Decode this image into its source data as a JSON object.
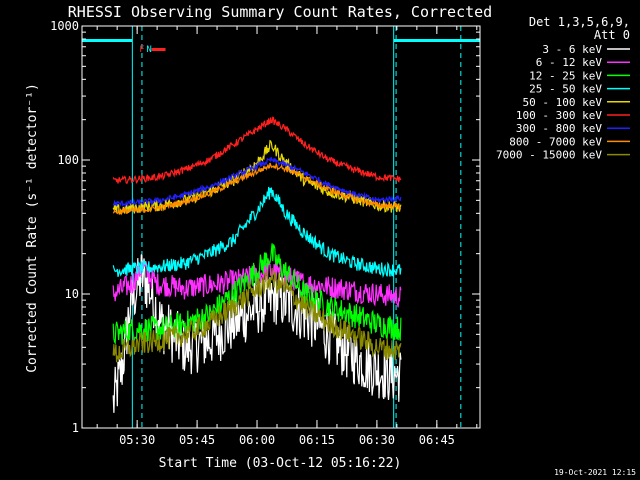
{
  "chart_data": {
    "type": "line",
    "title": "RHESSI Observing Summary Count Rates, Corrected",
    "ylabel": "Corrected Count Rate (s⁻¹ detector⁻¹)",
    "xlabel": "Start Time (03-Oct-12 05:16:22)",
    "timestamp": "19-Oct-2021 12:15",
    "xlim": [
      5.27,
      6.93
    ],
    "ylim": [
      1,
      1000
    ],
    "yscale": "log",
    "x_ticks": [
      {
        "t": 5.5,
        "label": "05:30"
      },
      {
        "t": 5.75,
        "label": "05:45"
      },
      {
        "t": 6.0,
        "label": "06:00"
      },
      {
        "t": 6.25,
        "label": "06:15"
      },
      {
        "t": 6.5,
        "label": "06:30"
      },
      {
        "t": 6.75,
        "label": "06:45"
      }
    ],
    "y_ticks": [
      {
        "v": 1,
        "label": "1"
      },
      {
        "v": 10,
        "label": "10"
      },
      {
        "v": 100,
        "label": "100"
      },
      {
        "v": 1000,
        "label": "1000"
      }
    ],
    "legend_header": [
      "Det 1,3,5,6,9,",
      "Att 0"
    ],
    "legend_position": "right",
    "data_interval": {
      "start": 5.4,
      "end": 6.6
    },
    "annotations": {
      "saa_bands": [
        [
          5.27,
          5.48
        ],
        [
          6.57,
          6.93
        ]
      ],
      "night_lines": [
        5.52,
        6.58,
        6.85
      ],
      "flags": [
        {
          "label": "F",
          "t": 5.52,
          "color": "#ff2020"
        },
        {
          "label": "N",
          "t": 5.55,
          "color": "#00ffff"
        }
      ]
    },
    "series": [
      {
        "name": "3 - 6 keV",
        "color": "#ffffff",
        "noise": 0.5,
        "values": [
          [
            5.4,
            1.5
          ],
          [
            5.44,
            3.0
          ],
          [
            5.47,
            8
          ],
          [
            5.52,
            14
          ],
          [
            5.56,
            10
          ],
          [
            5.6,
            6
          ],
          [
            5.7,
            4
          ],
          [
            5.8,
            4.5
          ],
          [
            5.9,
            6
          ],
          [
            6.0,
            8
          ],
          [
            6.08,
            9.5
          ],
          [
            6.15,
            8
          ],
          [
            6.25,
            6
          ],
          [
            6.35,
            4
          ],
          [
            6.45,
            3
          ],
          [
            6.55,
            2.5
          ],
          [
            6.6,
            2.5
          ]
        ]
      },
      {
        "name": "6 - 12 keV",
        "color": "#ff30ff",
        "noise": 0.2,
        "values": [
          [
            5.4,
            10
          ],
          [
            5.48,
            12
          ],
          [
            5.52,
            16
          ],
          [
            5.58,
            12
          ],
          [
            5.7,
            11
          ],
          [
            5.85,
            12
          ],
          [
            5.95,
            13
          ],
          [
            6.05,
            15
          ],
          [
            6.1,
            14
          ],
          [
            6.2,
            12
          ],
          [
            6.35,
            11
          ],
          [
            6.5,
            10
          ],
          [
            6.6,
            9.5
          ]
        ]
      },
      {
        "name": "12 - 25 keV",
        "color": "#00ff00",
        "noise": 0.22,
        "values": [
          [
            5.4,
            5
          ],
          [
            5.5,
            5.5
          ],
          [
            5.6,
            5.5
          ],
          [
            5.7,
            6
          ],
          [
            5.8,
            7
          ],
          [
            5.9,
            10
          ],
          [
            6.0,
            15
          ],
          [
            6.06,
            20
          ],
          [
            6.1,
            16
          ],
          [
            6.2,
            10
          ],
          [
            6.3,
            8
          ],
          [
            6.4,
            7
          ],
          [
            6.5,
            6
          ],
          [
            6.6,
            5.5
          ]
        ]
      },
      {
        "name": "25 - 50 keV",
        "color": "#00ffff",
        "noise": 0.12,
        "values": [
          [
            5.4,
            15
          ],
          [
            5.5,
            15.5
          ],
          [
            5.6,
            16
          ],
          [
            5.7,
            17
          ],
          [
            5.8,
            20
          ],
          [
            5.9,
            25
          ],
          [
            6.0,
            42
          ],
          [
            6.06,
            60
          ],
          [
            6.12,
            40
          ],
          [
            6.2,
            28
          ],
          [
            6.3,
            20
          ],
          [
            6.4,
            17
          ],
          [
            6.5,
            15.5
          ],
          [
            6.6,
            15
          ]
        ]
      },
      {
        "name": "50 - 100 keV",
        "color": "#e8d800",
        "noise": 0.1,
        "values": [
          [
            5.4,
            42
          ],
          [
            5.5,
            44
          ],
          [
            5.6,
            46
          ],
          [
            5.7,
            50
          ],
          [
            5.8,
            58
          ],
          [
            5.9,
            70
          ],
          [
            6.0,
            95
          ],
          [
            6.06,
            130
          ],
          [
            6.12,
            95
          ],
          [
            6.2,
            70
          ],
          [
            6.3,
            58
          ],
          [
            6.4,
            52
          ],
          [
            6.5,
            46
          ],
          [
            6.6,
            44
          ]
        ]
      },
      {
        "name": "100 - 300 keV",
        "color": "#ff2020",
        "noise": 0.06,
        "values": [
          [
            5.4,
            70
          ],
          [
            5.5,
            72
          ],
          [
            5.6,
            75
          ],
          [
            5.7,
            85
          ],
          [
            5.8,
            100
          ],
          [
            5.9,
            130
          ],
          [
            6.0,
            170
          ],
          [
            6.06,
            200
          ],
          [
            6.12,
            170
          ],
          [
            6.2,
            130
          ],
          [
            6.3,
            100
          ],
          [
            6.4,
            85
          ],
          [
            6.5,
            75
          ],
          [
            6.6,
            72
          ]
        ]
      },
      {
        "name": "300 - 800 keV",
        "color": "#2020ff",
        "noise": 0.05,
        "values": [
          [
            5.4,
            47
          ],
          [
            5.5,
            48
          ],
          [
            5.6,
            50
          ],
          [
            5.7,
            55
          ],
          [
            5.8,
            63
          ],
          [
            5.9,
            75
          ],
          [
            6.0,
            90
          ],
          [
            6.06,
            100
          ],
          [
            6.12,
            92
          ],
          [
            6.2,
            80
          ],
          [
            6.3,
            65
          ],
          [
            6.4,
            56
          ],
          [
            6.5,
            50
          ],
          [
            6.6,
            52
          ]
        ]
      },
      {
        "name": "800 - 7000 keV",
        "color": "#ff8c00",
        "noise": 0.05,
        "values": [
          [
            5.4,
            41
          ],
          [
            5.5,
            42
          ],
          [
            5.6,
            44
          ],
          [
            5.7,
            49
          ],
          [
            5.8,
            56
          ],
          [
            5.9,
            68
          ],
          [
            6.0,
            82
          ],
          [
            6.06,
            92
          ],
          [
            6.12,
            86
          ],
          [
            6.2,
            74
          ],
          [
            6.3,
            60
          ],
          [
            6.4,
            52
          ],
          [
            6.5,
            46
          ],
          [
            6.6,
            45
          ]
        ]
      },
      {
        "name": "7000 - 15000 keV",
        "color": "#8a8a00",
        "noise": 0.2,
        "values": [
          [
            5.4,
            3.5
          ],
          [
            5.5,
            4.2
          ],
          [
            5.6,
            4.5
          ],
          [
            5.7,
            5
          ],
          [
            5.8,
            6
          ],
          [
            5.9,
            8
          ],
          [
            6.0,
            11
          ],
          [
            6.06,
            13
          ],
          [
            6.12,
            11
          ],
          [
            6.2,
            8
          ],
          [
            6.3,
            6
          ],
          [
            6.4,
            5
          ],
          [
            6.5,
            4
          ],
          [
            6.6,
            3.8
          ]
        ]
      }
    ]
  }
}
